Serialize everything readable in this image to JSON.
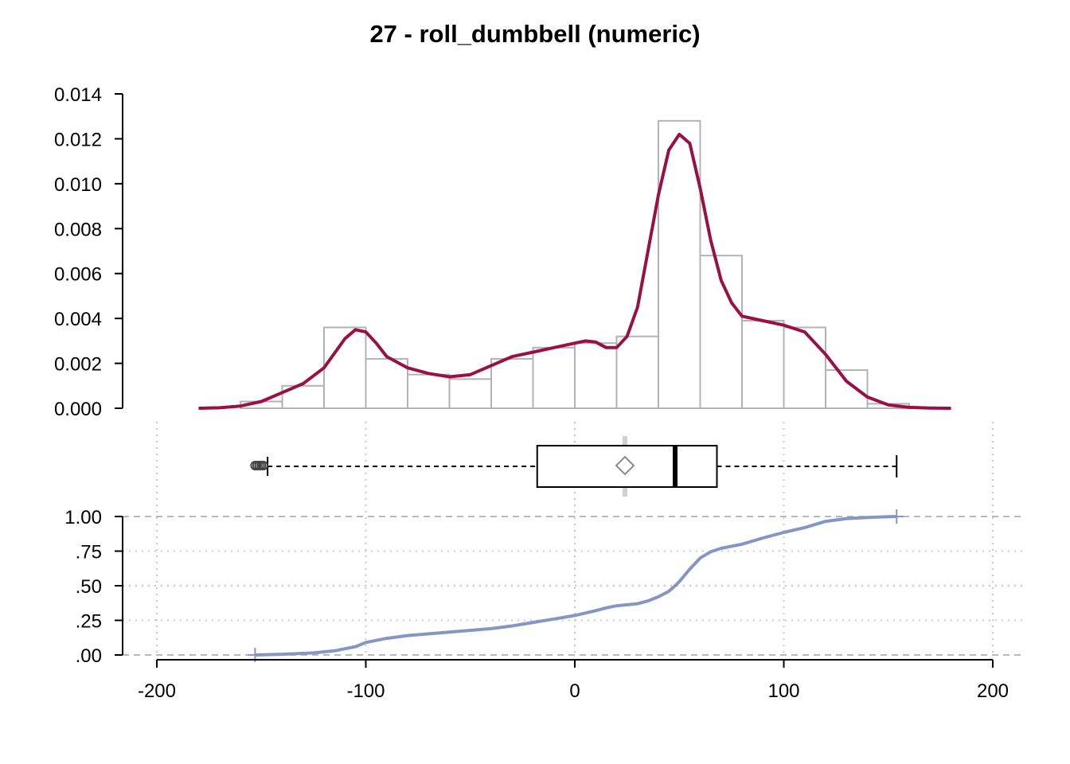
{
  "title": "27 - roll_dumbbell (numeric)",
  "colors": {
    "density": "#9a1044",
    "ecdf": "#8496c4",
    "hist": "#b3b3b3",
    "grid": "#c8c8c8"
  },
  "chart_data": {
    "type": "histogram+density+boxplot+ecdf",
    "title": "27 - roll_dumbbell (numeric)",
    "x_axis": {
      "range": [
        -200,
        200
      ],
      "ticks": [
        -200,
        -100,
        0,
        100,
        200
      ],
      "tick_labels": [
        "-200",
        "-100",
        "0",
        "100",
        "200"
      ]
    },
    "histogram": {
      "y_axis": {
        "range": [
          0,
          0.014
        ],
        "ticks": [
          0,
          0.002,
          0.004,
          0.006,
          0.008,
          0.01,
          0.012,
          0.014
        ],
        "tick_labels": [
          "0.000",
          "0.002",
          "0.004",
          "0.006",
          "0.008",
          "0.010",
          "0.012",
          "0.014"
        ]
      },
      "bins": [
        {
          "from": -160,
          "to": -140,
          "density": 0.0003
        },
        {
          "from": -140,
          "to": -120,
          "density": 0.001
        },
        {
          "from": -120,
          "to": -100,
          "density": 0.0036
        },
        {
          "from": -100,
          "to": -80,
          "density": 0.0022
        },
        {
          "from": -80,
          "to": -60,
          "density": 0.0015
        },
        {
          "from": -60,
          "to": -40,
          "density": 0.0013
        },
        {
          "from": -40,
          "to": -20,
          "density": 0.0022
        },
        {
          "from": -20,
          "to": 0,
          "density": 0.0027
        },
        {
          "from": 0,
          "to": 20,
          "density": 0.0029
        },
        {
          "from": 20,
          "to": 40,
          "density": 0.0032
        },
        {
          "from": 40,
          "to": 60,
          "density": 0.0128
        },
        {
          "from": 60,
          "to": 80,
          "density": 0.0068
        },
        {
          "from": 80,
          "to": 100,
          "density": 0.0039
        },
        {
          "from": 100,
          "to": 120,
          "density": 0.0036
        },
        {
          "from": 120,
          "to": 140,
          "density": 0.0017
        },
        {
          "from": 140,
          "to": 160,
          "density": 0.0002
        }
      ],
      "density_curve": {
        "x": [
          -180,
          -170,
          -160,
          -150,
          -140,
          -130,
          -120,
          -110,
          -105,
          -100,
          -95,
          -90,
          -80,
          -70,
          -60,
          -50,
          -40,
          -30,
          -20,
          -10,
          0,
          5,
          10,
          15,
          20,
          25,
          30,
          35,
          40,
          45,
          50,
          55,
          60,
          65,
          70,
          75,
          80,
          90,
          100,
          110,
          120,
          130,
          140,
          150,
          160,
          170,
          180
        ],
        "y": [
          0,
          2e-05,
          0.0001,
          0.0003,
          0.0007,
          0.0011,
          0.0018,
          0.0031,
          0.0035,
          0.0034,
          0.0029,
          0.0023,
          0.0018,
          0.00155,
          0.0014,
          0.0015,
          0.0019,
          0.0023,
          0.0025,
          0.0027,
          0.0029,
          0.003,
          0.00295,
          0.0027,
          0.0027,
          0.0032,
          0.0045,
          0.007,
          0.0095,
          0.0115,
          0.0122,
          0.0118,
          0.0098,
          0.0075,
          0.0057,
          0.0047,
          0.0041,
          0.0039,
          0.0037,
          0.0034,
          0.0024,
          0.0012,
          0.0005,
          0.00015,
          4e-05,
          1e-05,
          0
        ]
      }
    },
    "boxplot": {
      "whisker_low": -147,
      "q1": -18,
      "median": 48,
      "q3": 68,
      "whisker_high": 154,
      "mean": 24,
      "outliers": [
        -153,
        -152,
        -151,
        -150,
        -149
      ]
    },
    "ecdf": {
      "y_axis": {
        "range": [
          0,
          1
        ],
        "ticks": [
          0,
          0.25,
          0.5,
          0.75,
          1
        ],
        "tick_labels": [
          ".00",
          ".25",
          ".50",
          ".75",
          "1.00"
        ]
      },
      "x": [
        -153,
        -140,
        -125,
        -115,
        -105,
        -100,
        -90,
        -80,
        -60,
        -40,
        -30,
        -20,
        -10,
        0,
        10,
        15,
        20,
        30,
        35,
        40,
        45,
        48,
        50,
        55,
        60,
        65,
        70,
        80,
        90,
        100,
        110,
        120,
        130,
        140,
        150,
        154
      ],
      "y": [
        0,
        0.005,
        0.015,
        0.03,
        0.06,
        0.09,
        0.12,
        0.14,
        0.165,
        0.19,
        0.21,
        0.235,
        0.26,
        0.285,
        0.32,
        0.34,
        0.355,
        0.37,
        0.39,
        0.42,
        0.46,
        0.5,
        0.53,
        0.62,
        0.7,
        0.745,
        0.77,
        0.8,
        0.845,
        0.885,
        0.92,
        0.965,
        0.985,
        0.993,
        0.998,
        1
      ]
    }
  }
}
